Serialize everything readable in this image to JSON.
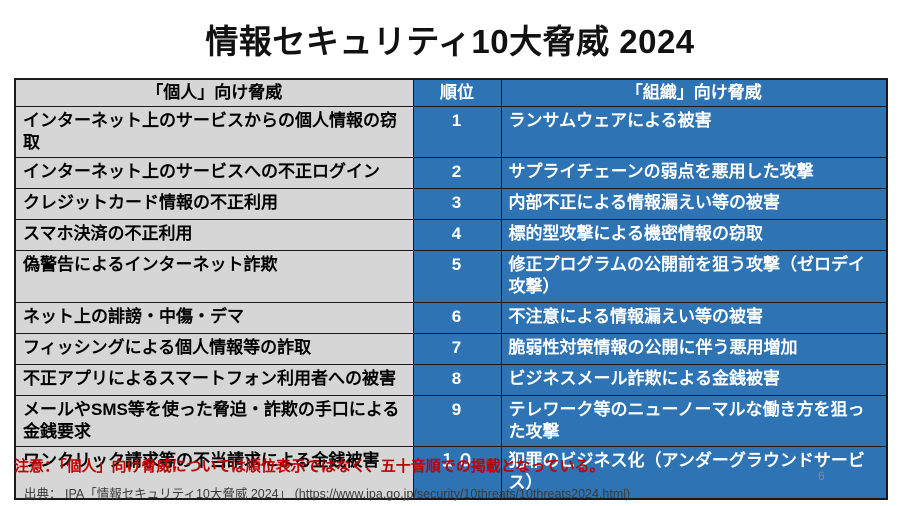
{
  "title": "情報セキュリティ10大脅威 2024",
  "table": {
    "headers": {
      "personal": "「個人」向け脅威",
      "rank": "順位",
      "organization": "「組織」向け脅威"
    },
    "rows": [
      {
        "rank": "1",
        "personal": "インターネット上のサービスからの個人情報の窃取",
        "organization": "ランサムウェアによる被害"
      },
      {
        "rank": "2",
        "personal": "インターネット上のサービスへの不正ログイン",
        "organization": "サプライチェーンの弱点を悪用した攻撃"
      },
      {
        "rank": "3",
        "personal": "クレジットカード情報の不正利用",
        "organization": "内部不正による情報漏えい等の被害"
      },
      {
        "rank": "4",
        "personal": "スマホ決済の不正利用",
        "organization": "標的型攻撃による機密情報の窃取"
      },
      {
        "rank": "5",
        "personal": "偽警告によるインターネット詐欺",
        "organization": "修正プログラムの公開前を狙う攻撃（ゼロデイ攻撃）"
      },
      {
        "rank": "6",
        "personal": "ネット上の誹謗・中傷・デマ",
        "organization": "不注意による情報漏えい等の被害"
      },
      {
        "rank": "7",
        "personal": "フィッシングによる個人情報等の詐取",
        "organization": "脆弱性対策情報の公開に伴う悪用増加"
      },
      {
        "rank": "8",
        "personal": "不正アプリによるスマートフォン利用者への被害",
        "organization": "ビジネスメール詐欺による金銭被害"
      },
      {
        "rank": "9",
        "personal": "メールやSMS等を使った脅迫・詐欺の手口による金銭要求",
        "organization": "テレワーク等のニューノーマルな働き方を狙った攻撃"
      },
      {
        "rank": "１０",
        "personal": "ワンクリック請求等の不当請求による金銭被害",
        "organization": "犯罪のビジネス化（アンダーグラウンドサービス）"
      }
    ]
  },
  "note": "注意：「個人」向け脅威については順位表示ではなく、五十音順での掲載となっている。",
  "source": "出典： IPA「情報セキュリティ10大脅威 2024」 (https://www.ipa.go.jp/security/10threats/10threats2024.html)",
  "page_number": "6",
  "colors": {
    "table_blue": "#2E74B5",
    "table_gray": "#D6D6D6",
    "note_red": "#C00000",
    "border": "#1a1a1a"
  }
}
